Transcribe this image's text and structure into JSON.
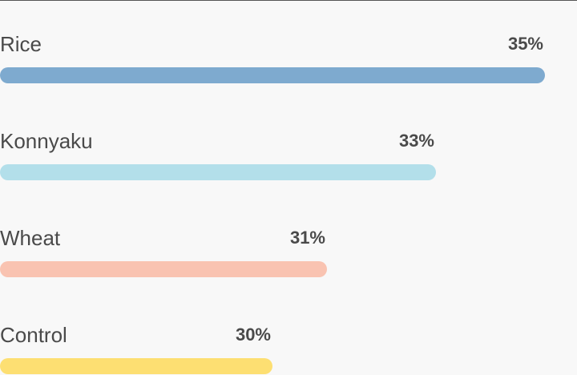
{
  "chart_data": {
    "type": "bar",
    "orientation": "horizontal",
    "categories": [
      "Rice",
      "Konnyaku",
      "Wheat",
      "Control"
    ],
    "values": [
      35,
      33,
      31,
      30
    ],
    "value_labels": [
      "35%",
      "33%",
      "31%",
      "30%"
    ],
    "colors": [
      "#7eaacf",
      "#b3dfea",
      "#f9c3b1",
      "#fddf72"
    ],
    "xlim": [
      25,
      35
    ]
  }
}
